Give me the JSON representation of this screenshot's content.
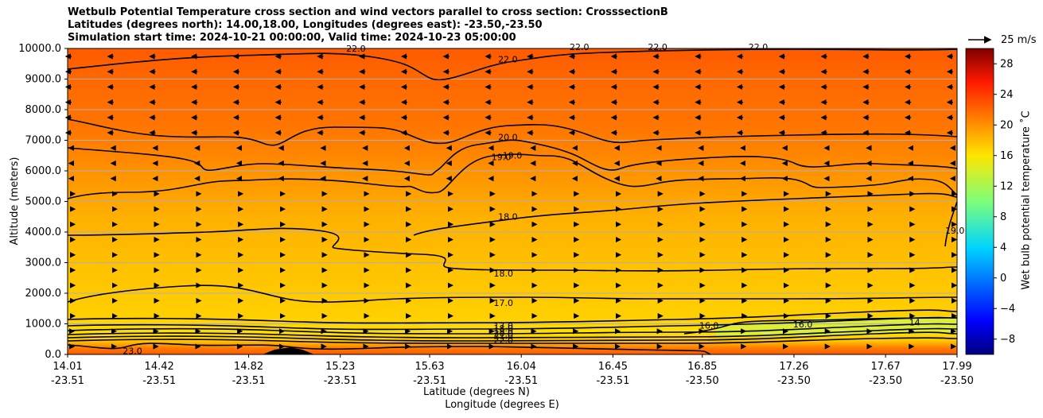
{
  "title": {
    "line1": "Wetbulb Potential Temperature cross section and wind vectors parallel to cross section: CrosssectionB",
    "line2": "Latitudes (degrees north): 14.00,18.00, Longitudes (degrees east): -23.50,-23.50",
    "line3": "Simulation start time: 2024-10-21 00:00:00, Valid time: 2024-10-23 05:00:00"
  },
  "chart_data": {
    "type": "heatmap",
    "ylabel": "Altitude (meters)",
    "xlabel_lat": "Latitude (degrees N)",
    "xlabel_lon": "Longitude (degrees E)",
    "ylim": [
      0,
      10000
    ],
    "y_ticks": [
      "0.0",
      "1000.0",
      "2000.0",
      "3000.0",
      "4000.0",
      "5000.0",
      "6000.0",
      "7000.0",
      "8000.0",
      "9000.0",
      "10000.0"
    ],
    "x_ticks_lat": [
      "14.01",
      "14.42",
      "14.82",
      "15.23",
      "15.63",
      "16.04",
      "16.45",
      "16.85",
      "17.26",
      "17.67",
      "17.99"
    ],
    "x_ticks_lon": [
      "-23.51",
      "-23.51",
      "-23.51",
      "-23.51",
      "-23.51",
      "-23.51",
      "-23.51",
      "-23.50",
      "-23.50",
      "-23.50",
      "-23.50"
    ],
    "grid": "horizontal",
    "colorbar": {
      "label": "Wet bulb potential temperature ˚C",
      "ticks": [
        "−8",
        "−4",
        "0",
        "4",
        "8",
        "12",
        "16",
        "20",
        "24",
        "28"
      ],
      "range": [
        -10,
        30
      ],
      "colormap": "jet"
    },
    "vector_reference": "25 m/s",
    "contour_labels": [
      {
        "text": "23.0",
        "lat": 14.3,
        "alt": 60
      },
      {
        "text": "22.0",
        "lat": 15.3,
        "alt": 9950
      },
      {
        "text": "22.0",
        "lat": 15.98,
        "alt": 9600
      },
      {
        "text": "22.0",
        "lat": 16.3,
        "alt": 10000
      },
      {
        "text": "22.0",
        "lat": 16.65,
        "alt": 10000
      },
      {
        "text": "22.0",
        "lat": 17.1,
        "alt": 10000
      },
      {
        "text": "20.0",
        "lat": 15.98,
        "alt": 7050
      },
      {
        "text": "19.0",
        "lat": 15.95,
        "alt": 6400
      },
      {
        "text": "19.0",
        "lat": 16.0,
        "alt": 6450
      },
      {
        "text": "18.0",
        "lat": 15.98,
        "alt": 4450
      },
      {
        "text": "19.0",
        "lat": 17.98,
        "alt": 4000
      },
      {
        "text": "18.0",
        "lat": 15.96,
        "alt": 2600
      },
      {
        "text": "17.0",
        "lat": 15.96,
        "alt": 1640
      },
      {
        "text": "17.0",
        "lat": 15.96,
        "alt": 880
      },
      {
        "text": "18.0",
        "lat": 15.96,
        "alt": 800
      },
      {
        "text": "19.0",
        "lat": 15.96,
        "alt": 720
      },
      {
        "text": "20.0",
        "lat": 15.96,
        "alt": 640
      },
      {
        "text": "21.0",
        "lat": 15.96,
        "alt": 560
      },
      {
        "text": "22.0",
        "lat": 15.96,
        "alt": 420
      },
      {
        "text": "16.0",
        "lat": 16.88,
        "alt": 900
      },
      {
        "text": "16.0",
        "lat": 17.3,
        "alt": 930
      },
      {
        "text": "14",
        "lat": 17.8,
        "alt": 1000
      }
    ]
  }
}
